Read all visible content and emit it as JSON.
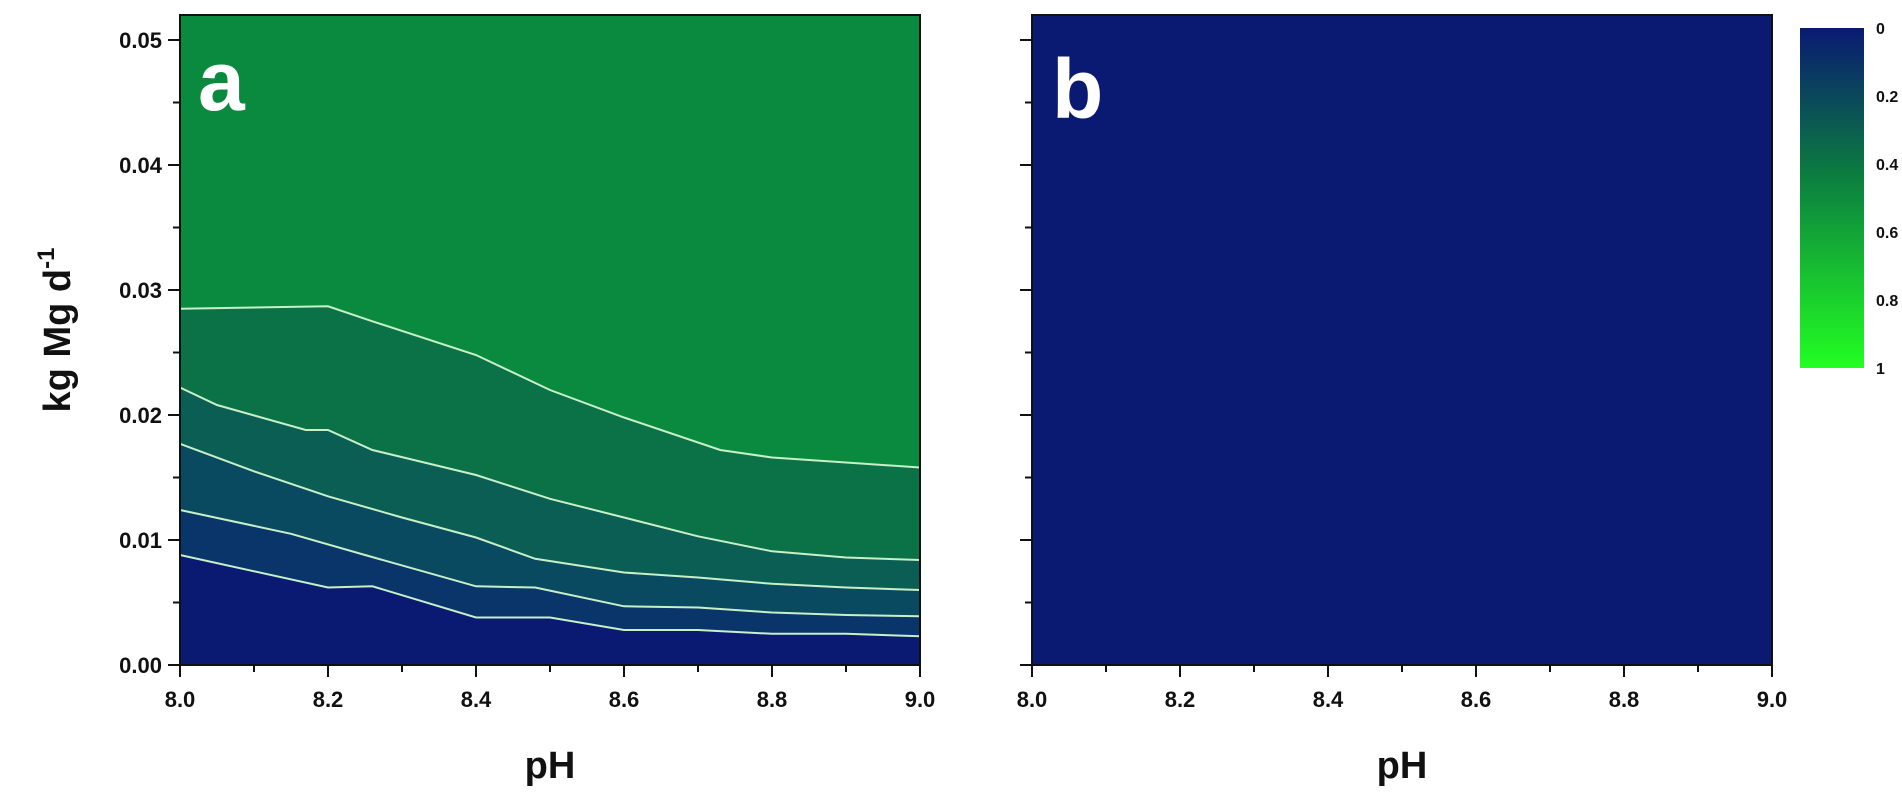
{
  "chart_data": [
    {
      "panel": "a",
      "type": "heatmap",
      "xlabel": "pH",
      "ylabel": "kg Mg d",
      "ylabel_sup": "-1",
      "xlim": [
        8.0,
        9.0
      ],
      "ylim": [
        0.0,
        0.052
      ],
      "x_ticks": [
        "8.0",
        "8.2",
        "8.4",
        "8.6",
        "8.8",
        "9.0"
      ],
      "y_ticks": [
        "0.00",
        "0.01",
        "0.02",
        "0.03",
        "0.04",
        "0.05"
      ],
      "contours": [
        {
          "x": [
            8.0,
            8.2,
            8.26,
            8.4,
            8.5,
            8.6,
            8.73,
            8.8,
            8.9,
            9.0
          ],
          "y": [
            0.0285,
            0.0287,
            0.0275,
            0.0248,
            0.022,
            0.0198,
            0.0172,
            0.0166,
            0.0162,
            0.0158
          ]
        },
        {
          "x": [
            8.0,
            8.05,
            8.17,
            8.2,
            8.26,
            8.4,
            8.5,
            8.6,
            8.7,
            8.8,
            8.9,
            9.0
          ],
          "y": [
            0.0222,
            0.0208,
            0.0188,
            0.0188,
            0.0172,
            0.0152,
            0.0133,
            0.0118,
            0.0103,
            0.0091,
            0.0086,
            0.0084
          ]
        },
        {
          "x": [
            8.0,
            8.1,
            8.2,
            8.3,
            8.4,
            8.48,
            8.6,
            8.7,
            8.8,
            8.9,
            9.0
          ],
          "y": [
            0.0177,
            0.0155,
            0.0135,
            0.0118,
            0.0102,
            0.0085,
            0.0074,
            0.007,
            0.0065,
            0.0062,
            0.006
          ]
        },
        {
          "x": [
            8.0,
            8.15,
            8.25,
            8.4,
            8.48,
            8.6,
            8.7,
            8.8,
            8.9,
            9.0
          ],
          "y": [
            0.0124,
            0.0105,
            0.0088,
            0.0063,
            0.0062,
            0.0047,
            0.0046,
            0.0042,
            0.004,
            0.0039
          ]
        },
        {
          "x": [
            8.0,
            8.2,
            8.26,
            8.4,
            8.5,
            8.6,
            8.7,
            8.8,
            8.9,
            9.0
          ],
          "y": [
            0.0088,
            0.0062,
            0.0063,
            0.0038,
            0.0038,
            0.0028,
            0.0028,
            0.0025,
            0.0025,
            0.0023
          ]
        }
      ]
    },
    {
      "panel": "b",
      "type": "heatmap",
      "xlabel": "pH",
      "xlim": [
        8.0,
        9.0
      ],
      "ylim": [
        0.0,
        0.052
      ],
      "x_ticks": [
        "8.0",
        "8.2",
        "8.4",
        "8.6",
        "8.8",
        "9.0"
      ],
      "value": 0
    }
  ],
  "colorbar": {
    "labels": [
      "0",
      "0.2",
      "0.4",
      "0.6",
      "0.8",
      "1"
    ],
    "colors": [
      "#0a1a73",
      "#098a3a",
      "#22ff22"
    ]
  },
  "colors": {
    "low": "#0a1a73",
    "high_a": "#0a8a3e",
    "contour": "#c7f0c7"
  }
}
